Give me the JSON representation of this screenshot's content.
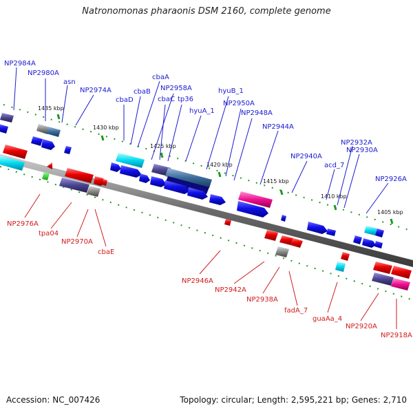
{
  "title": "Natronomonas pharaonis DSM 2160, complete genome",
  "accession": "Accession: NC_007426",
  "summary": "Topology: circular; Length: 2,595,221 bp; Genes: 2,710",
  "colors": {
    "forward_label": "#1a1ad0",
    "reverse_label": "#d01a1a",
    "backbone": "#7a7a7a",
    "tick": "#1a9a1a"
  },
  "scale_labels": [
    "1435 kbp",
    "1430 kbp",
    "1425 kbp",
    "1420 kbp",
    "1415 kbp",
    "1410 kbp",
    "1405 kbp"
  ],
  "forward_genes": [
    "NP2984A",
    "NP2980A",
    "asn",
    "NP2974A",
    "cbaD",
    "cbaB",
    "cbaA",
    "NP2958A",
    "cbaC",
    "tp36",
    "hyuA_1",
    "hyuB_1",
    "NP2950A",
    "NP2948A",
    "NP2944A",
    "NP2940A",
    "acd_7",
    "NP2932A",
    "NP2930A",
    "NP2926A"
  ],
  "reverse_genes": [
    "NP2976A",
    "tpa04",
    "NP2970A",
    "cbaE",
    "NP2946A",
    "NP2942A",
    "NP2938A",
    "fadA_7",
    "guaAa_4",
    "NP2920A",
    "NP2918A"
  ]
}
